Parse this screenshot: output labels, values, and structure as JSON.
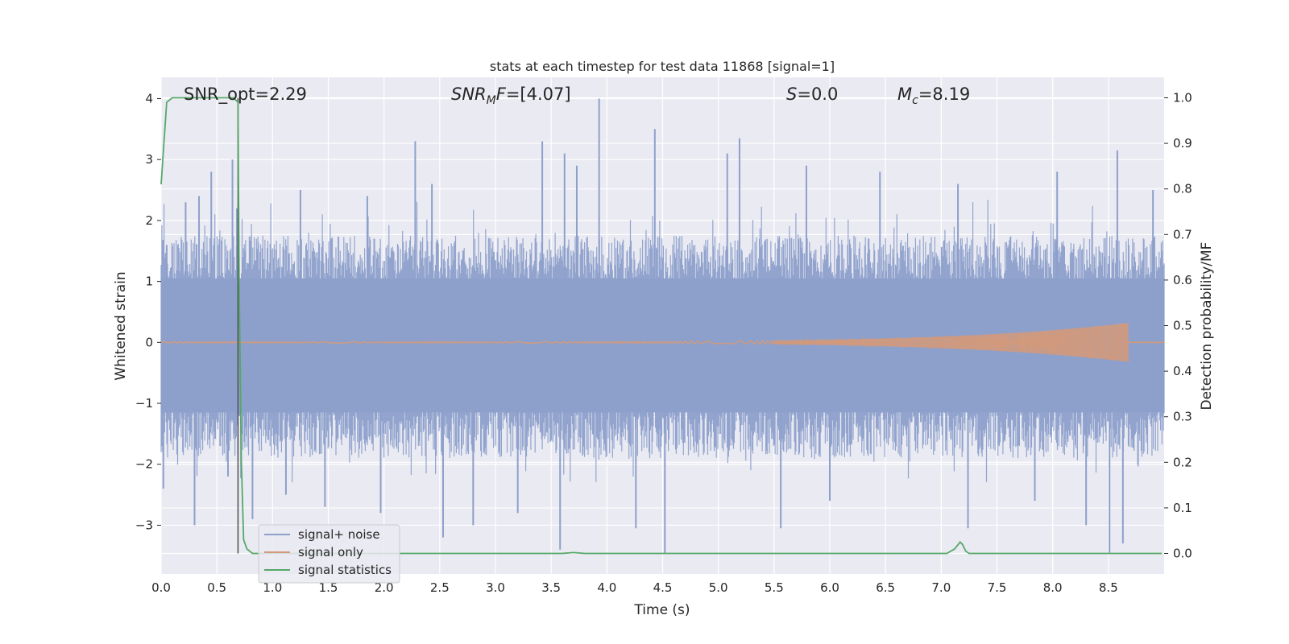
{
  "chart_data": {
    "type": "line",
    "title": "stats at each timestep for test data 11868 [signal=1]",
    "xlabel": "Time (s)",
    "ylabel_left": "Whitened strain",
    "ylabel_right": "Detection probability/MF",
    "xlim": [
      0,
      9.0
    ],
    "ylim_left": [
      -3.8,
      4.35
    ],
    "ylim_right": [
      -0.045,
      1.045
    ],
    "x_ticks": [
      "0.0",
      "0.5",
      "1.0",
      "1.5",
      "2.0",
      "2.5",
      "3.0",
      "3.5",
      "4.0",
      "4.5",
      "5.0",
      "5.5",
      "6.0",
      "6.5",
      "7.0",
      "7.5",
      "8.0",
      "8.5"
    ],
    "y_ticks_left": [
      "4",
      "3",
      "2",
      "1",
      "0",
      "−1",
      "−2",
      "−3"
    ],
    "y_ticks_left_values": [
      4,
      3,
      2,
      1,
      0,
      -1,
      -2,
      -3
    ],
    "y_ticks_right": [
      "1.0",
      "0.9",
      "0.8",
      "0.7",
      "0.6",
      "0.5",
      "0.4",
      "0.3",
      "0.2",
      "0.1",
      "0.0"
    ],
    "y_ticks_right_values": [
      1.0,
      0.9,
      0.8,
      0.7,
      0.6,
      0.5,
      0.4,
      0.3,
      0.2,
      0.1,
      0.0
    ],
    "grid": true,
    "legend_position": "lower-left",
    "annotations": {
      "snr_opt": "SNR_opt=2.29",
      "snr_mf_prefix": "SNR",
      "snr_mf_sub": "M",
      "snr_mf_suffix": "F=[4.07]",
      "s_italic": "S",
      "s_value": "=0.0",
      "mc_prefix": "M",
      "mc_sub": "c",
      "mc_value": "=8.19"
    },
    "vline_time": 0.69,
    "series": [
      {
        "name": "signal+ noise",
        "axis": "left",
        "color": "#8da0cb",
        "style": "noise",
        "envelope_hi": 1.75,
        "envelope_lo": -1.9,
        "peaks": [
          {
            "x": 0.05,
            "y": 1.6
          },
          {
            "x": 0.22,
            "y": 2.3
          },
          {
            "x": 0.34,
            "y": 2.4
          },
          {
            "x": 0.45,
            "y": 2.8
          },
          {
            "x": 0.64,
            "y": 3.0
          },
          {
            "x": 0.68,
            "y": 2.2
          },
          {
            "x": 1.25,
            "y": 2.5
          },
          {
            "x": 1.85,
            "y": 2.4
          },
          {
            "x": 2.28,
            "y": 3.3
          },
          {
            "x": 2.43,
            "y": 2.6
          },
          {
            "x": 3.42,
            "y": 3.3
          },
          {
            "x": 3.62,
            "y": 3.1
          },
          {
            "x": 3.73,
            "y": 2.9
          },
          {
            "x": 3.93,
            "y": 4.0
          },
          {
            "x": 4.43,
            "y": 3.5
          },
          {
            "x": 5.08,
            "y": 3.1
          },
          {
            "x": 5.19,
            "y": 3.35
          },
          {
            "x": 5.79,
            "y": 2.9
          },
          {
            "x": 6.45,
            "y": 2.8
          },
          {
            "x": 7.15,
            "y": 2.6
          },
          {
            "x": 8.04,
            "y": 2.8
          },
          {
            "x": 8.58,
            "y": 3.15
          },
          {
            "x": 8.9,
            "y": 2.5
          }
        ],
        "troughs": [
          {
            "x": 0.02,
            "y": -2.4
          },
          {
            "x": 0.3,
            "y": -3.0
          },
          {
            "x": 0.6,
            "y": -2.2
          },
          {
            "x": 0.82,
            "y": -2.9
          },
          {
            "x": 1.12,
            "y": -2.5
          },
          {
            "x": 1.47,
            "y": -2.7
          },
          {
            "x": 1.97,
            "y": -2.8
          },
          {
            "x": 2.53,
            "y": -3.2
          },
          {
            "x": 2.8,
            "y": -3.0
          },
          {
            "x": 3.2,
            "y": -2.8
          },
          {
            "x": 3.58,
            "y": -3.4
          },
          {
            "x": 4.26,
            "y": -3.05
          },
          {
            "x": 4.52,
            "y": -3.45
          },
          {
            "x": 5.56,
            "y": -3.05
          },
          {
            "x": 6.0,
            "y": -2.6
          },
          {
            "x": 7.24,
            "y": -3.05
          },
          {
            "x": 7.84,
            "y": -2.6
          },
          {
            "x": 8.3,
            "y": -3.0
          },
          {
            "x": 8.51,
            "y": -3.45
          },
          {
            "x": 8.63,
            "y": -3.3
          }
        ]
      },
      {
        "name": "signal only",
        "axis": "left",
        "color": "#d4997a",
        "style": "chirp",
        "amp_start": 0.01,
        "amp_end": 0.32,
        "t_end": 8.68
      },
      {
        "name": "signal statistics",
        "axis": "right",
        "color": "#55a868",
        "style": "line",
        "x": [
          0.0,
          0.05,
          0.1,
          0.15,
          0.2,
          0.3,
          0.4,
          0.5,
          0.6,
          0.65,
          0.69,
          0.7,
          0.72,
          0.74,
          0.77,
          0.82,
          1.0,
          2.0,
          3.0,
          3.6,
          3.7,
          3.8,
          4.5,
          5.5,
          6.5,
          7.05,
          7.12,
          7.17,
          7.19,
          7.22,
          7.25,
          7.3,
          8.0,
          8.98
        ],
        "y": [
          0.81,
          0.99,
          1.0,
          1.0,
          1.0,
          1.0,
          1.0,
          1.0,
          1.0,
          1.0,
          0.99,
          0.6,
          0.2,
          0.03,
          0.01,
          0.0,
          0.0,
          0.0,
          0.0,
          0.0,
          0.002,
          0.0,
          0.0,
          0.0,
          0.0,
          0.0,
          0.01,
          0.025,
          0.02,
          0.005,
          0.0,
          0.0,
          0.0,
          0.0
        ]
      }
    ]
  }
}
